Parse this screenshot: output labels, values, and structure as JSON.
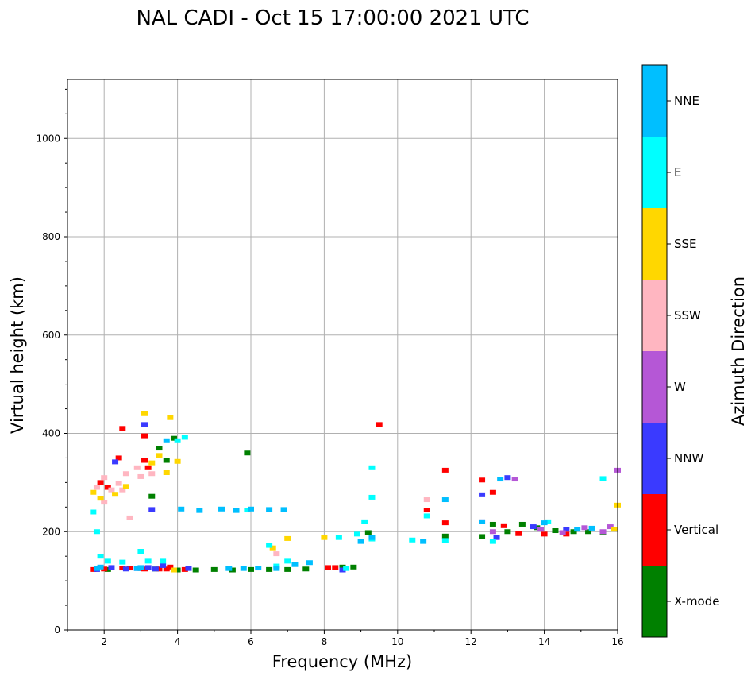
{
  "chart_data": {
    "type": "scatter",
    "title": "NAL CADI - Oct 15 17:00:00 2021 UTC",
    "xlabel": "Frequency (MHz)",
    "ylabel": "Virtual height (km)",
    "xlim": [
      1,
      16
    ],
    "ylim": [
      0,
      1120
    ],
    "xticks": [
      "2",
      "4",
      "6",
      "8",
      "10",
      "12",
      "14",
      "16"
    ],
    "xtick_values": [
      2,
      4,
      6,
      8,
      10,
      12,
      14,
      16
    ],
    "yticks": [
      "0",
      "200",
      "400",
      "600",
      "800",
      "1000"
    ],
    "ytick_values": [
      0,
      200,
      400,
      600,
      800,
      1000
    ],
    "grid": true,
    "colorbar": {
      "label": "Azimuth Direction",
      "categories": [
        {
          "label": "X-mode",
          "color": "#008000"
        },
        {
          "label": "Vertical",
          "color": "#ff0000"
        },
        {
          "label": "NNW",
          "color": "#3a3aff"
        },
        {
          "label": "W",
          "color": "#b557d6"
        },
        {
          "label": "SSW",
          "color": "#ffb6c1"
        },
        {
          "label": "SSE",
          "color": "#ffd700"
        },
        {
          "label": "E",
          "color": "#00ffff"
        },
        {
          "label": "NNE",
          "color": "#00bfff"
        }
      ]
    },
    "series": [
      {
        "name": "X-mode",
        "points": [
          [
            4.0,
            122
          ],
          [
            4.5,
            122
          ],
          [
            5.0,
            123
          ],
          [
            5.5,
            122
          ],
          [
            6.0,
            123
          ],
          [
            6.5,
            123
          ],
          [
            7.0,
            123
          ],
          [
            7.5,
            124
          ],
          [
            8.5,
            128
          ],
          [
            8.8,
            128
          ],
          [
            9.2,
            198
          ],
          [
            11.3,
            191
          ],
          [
            12.3,
            190
          ],
          [
            12.6,
            215
          ],
          [
            13.0,
            200
          ],
          [
            13.4,
            215
          ],
          [
            13.8,
            208
          ],
          [
            14.3,
            202
          ],
          [
            14.8,
            200
          ],
          [
            15.2,
            200
          ],
          [
            15.6,
            199
          ],
          [
            2.1,
            123
          ],
          [
            3.0,
            125
          ],
          [
            3.4,
            124
          ],
          [
            3.5,
            370
          ],
          [
            3.9,
            390
          ],
          [
            3.7,
            345
          ],
          [
            3.3,
            272
          ],
          [
            5.9,
            360
          ]
        ]
      },
      {
        "name": "Vertical",
        "points": [
          [
            1.7,
            123
          ],
          [
            2.0,
            124
          ],
          [
            2.5,
            126
          ],
          [
            2.7,
            126
          ],
          [
            3.1,
            124
          ],
          [
            3.5,
            124
          ],
          [
            3.7,
            124
          ],
          [
            3.8,
            128
          ],
          [
            4.2,
            123
          ],
          [
            8.1,
            127
          ],
          [
            8.3,
            127
          ],
          [
            9.5,
            418
          ],
          [
            10.8,
            244
          ],
          [
            11.3,
            218
          ],
          [
            11.3,
            325
          ],
          [
            12.3,
            305
          ],
          [
            12.6,
            280
          ],
          [
            12.9,
            212
          ],
          [
            13.3,
            196
          ],
          [
            14.0,
            195
          ],
          [
            14.6,
            195
          ],
          [
            2.5,
            410
          ],
          [
            2.4,
            350
          ],
          [
            3.1,
            345
          ],
          [
            3.2,
            330
          ],
          [
            3.1,
            395
          ],
          [
            1.9,
            300
          ],
          [
            2.1,
            290
          ]
        ]
      },
      {
        "name": "NNW",
        "points": [
          [
            1.8,
            123
          ],
          [
            2.2,
            127
          ],
          [
            2.6,
            124
          ],
          [
            2.9,
            125
          ],
          [
            3.2,
            127
          ],
          [
            3.4,
            124
          ],
          [
            3.6,
            131
          ],
          [
            4.3,
            125
          ],
          [
            8.5,
            122
          ],
          [
            12.3,
            275
          ],
          [
            12.7,
            188
          ],
          [
            13.0,
            310
          ],
          [
            13.7,
            210
          ],
          [
            14.6,
            205
          ],
          [
            3.1,
            418
          ],
          [
            3.3,
            245
          ],
          [
            2.3,
            342
          ]
        ]
      },
      {
        "name": "W",
        "points": [
          [
            12.3,
            220
          ],
          [
            12.6,
            200
          ],
          [
            13.2,
            307
          ],
          [
            13.9,
            205
          ],
          [
            14.5,
            198
          ],
          [
            15.1,
            208
          ],
          [
            15.6,
            200
          ],
          [
            15.8,
            210
          ],
          [
            16.0,
            325
          ]
        ]
      },
      {
        "name": "SSW",
        "points": [
          [
            1.8,
            290
          ],
          [
            2.0,
            310
          ],
          [
            2.2,
            285
          ],
          [
            2.4,
            298
          ],
          [
            2.5,
            285
          ],
          [
            2.6,
            318
          ],
          [
            2.9,
            330
          ],
          [
            3.0,
            312
          ],
          [
            3.3,
            318
          ],
          [
            10.8,
            265
          ],
          [
            6.7,
            155
          ],
          [
            2.7,
            228
          ],
          [
            2.0,
            260
          ]
        ]
      },
      {
        "name": "SSE",
        "points": [
          [
            1.7,
            280
          ],
          [
            1.9,
            268
          ],
          [
            2.3,
            276
          ],
          [
            2.6,
            292
          ],
          [
            3.3,
            340
          ],
          [
            3.5,
            355
          ],
          [
            3.7,
            320
          ],
          [
            4.0,
            343
          ],
          [
            3.1,
            440
          ],
          [
            3.8,
            432
          ],
          [
            6.6,
            167
          ],
          [
            7.0,
            186
          ],
          [
            8.0,
            188
          ],
          [
            15.9,
            205
          ],
          [
            16.0,
            254
          ],
          [
            3.9,
            122
          ]
        ]
      },
      {
        "name": "E",
        "points": [
          [
            1.7,
            240
          ],
          [
            1.9,
            150
          ],
          [
            2.1,
            140
          ],
          [
            2.5,
            138
          ],
          [
            3.0,
            160
          ],
          [
            3.2,
            140
          ],
          [
            3.6,
            140
          ],
          [
            4.0,
            385
          ],
          [
            4.2,
            392
          ],
          [
            5.9,
            244
          ],
          [
            6.5,
            172
          ],
          [
            6.7,
            130
          ],
          [
            7.0,
            140
          ],
          [
            8.4,
            188
          ],
          [
            8.6,
            125
          ],
          [
            8.9,
            195
          ],
          [
            9.1,
            220
          ],
          [
            9.3,
            270
          ],
          [
            9.3,
            330
          ],
          [
            9.3,
            185
          ],
          [
            10.4,
            183
          ],
          [
            10.8,
            232
          ],
          [
            11.3,
            182
          ],
          [
            12.6,
            180
          ],
          [
            14.1,
            220
          ],
          [
            15.6,
            308
          ],
          [
            1.8,
            200
          ]
        ]
      },
      {
        "name": "NNE",
        "points": [
          [
            1.8,
            125
          ],
          [
            1.9,
            128
          ],
          [
            2.9,
            125
          ],
          [
            3.0,
            127
          ],
          [
            4.1,
            246
          ],
          [
            4.6,
            243
          ],
          [
            5.2,
            246
          ],
          [
            5.6,
            243
          ],
          [
            6.0,
            246
          ],
          [
            6.5,
            245
          ],
          [
            6.9,
            245
          ],
          [
            5.4,
            125
          ],
          [
            5.8,
            125
          ],
          [
            6.2,
            126
          ],
          [
            6.7,
            125
          ],
          [
            7.2,
            133
          ],
          [
            7.6,
            137
          ],
          [
            9.0,
            180
          ],
          [
            9.3,
            188
          ],
          [
            10.7,
            180
          ],
          [
            11.3,
            265
          ],
          [
            12.3,
            220
          ],
          [
            12.8,
            307
          ],
          [
            14.0,
            218
          ],
          [
            14.9,
            205
          ],
          [
            15.3,
            207
          ],
          [
            3.7,
            385
          ]
        ]
      }
    ]
  }
}
